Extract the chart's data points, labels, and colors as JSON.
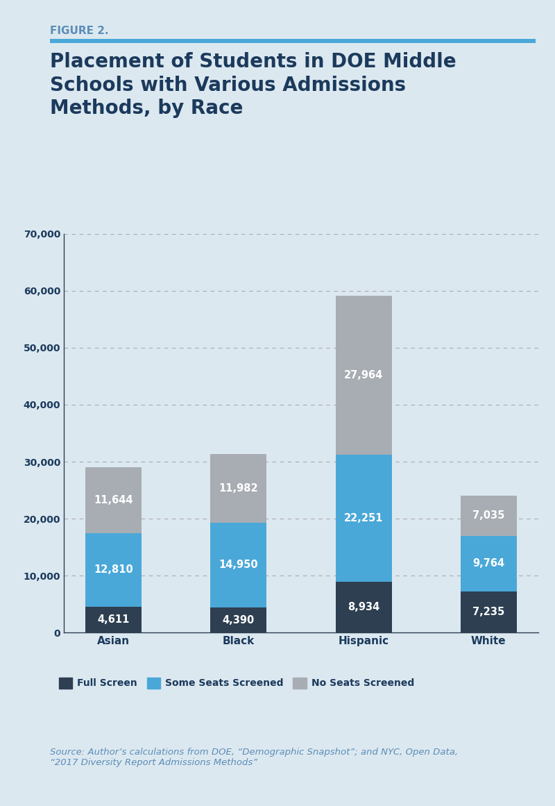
{
  "title_label": "FIGURE 2.",
  "title_line1": "Placement of Students in DOE Middle",
  "title_line2": "Schools with Various Admissions",
  "title_line3": "Methods, by Race",
  "categories": [
    "Asian",
    "Black",
    "Hispanic",
    "White"
  ],
  "full_screen": [
    4611,
    4390,
    8934,
    7235
  ],
  "some_seats_screened": [
    12810,
    14950,
    22251,
    9764
  ],
  "no_seats_screened": [
    11644,
    11982,
    27964,
    7035
  ],
  "bar_colors": {
    "full_screen": "#2e3f52",
    "some_seats_screened": "#4aa8d8",
    "no_seats_screened": "#a8adb3"
  },
  "ylim": [
    0,
    70000
  ],
  "yticks": [
    0,
    10000,
    20000,
    30000,
    40000,
    50000,
    60000,
    70000
  ],
  "ytick_labels": [
    "0",
    "10,000",
    "20,000",
    "30,000",
    "40,000",
    "50,000",
    "60,000",
    "70,000"
  ],
  "legend_labels": [
    "Full Screen",
    "Some Seats Screened",
    "No Seats Screened"
  ],
  "source_text": "Source: Author’s calculations from DOE, “Demographic Snapshot”; and NYC, Open Data,\n“2017 Diversity Report Admissions Methods”",
  "bg_color": "#dce8f0",
  "plot_bg_color": "#dce8f0",
  "title_color": "#1b3a5c",
  "figure_label_color": "#5b8db8",
  "axis_line_color": "#2e3f52",
  "grid_color": "#aaaaaa",
  "text_color_on_bar": "#ffffff",
  "source_color": "#5b8db8",
  "accent_line_color": "#4aa8d8",
  "bar_fontsize": 10.5,
  "ytick_fontsize": 10,
  "xtick_fontsize": 11,
  "legend_fontsize": 10,
  "source_fontsize": 9.5,
  "figure_label_fontsize": 11,
  "title_fontsize": 20
}
